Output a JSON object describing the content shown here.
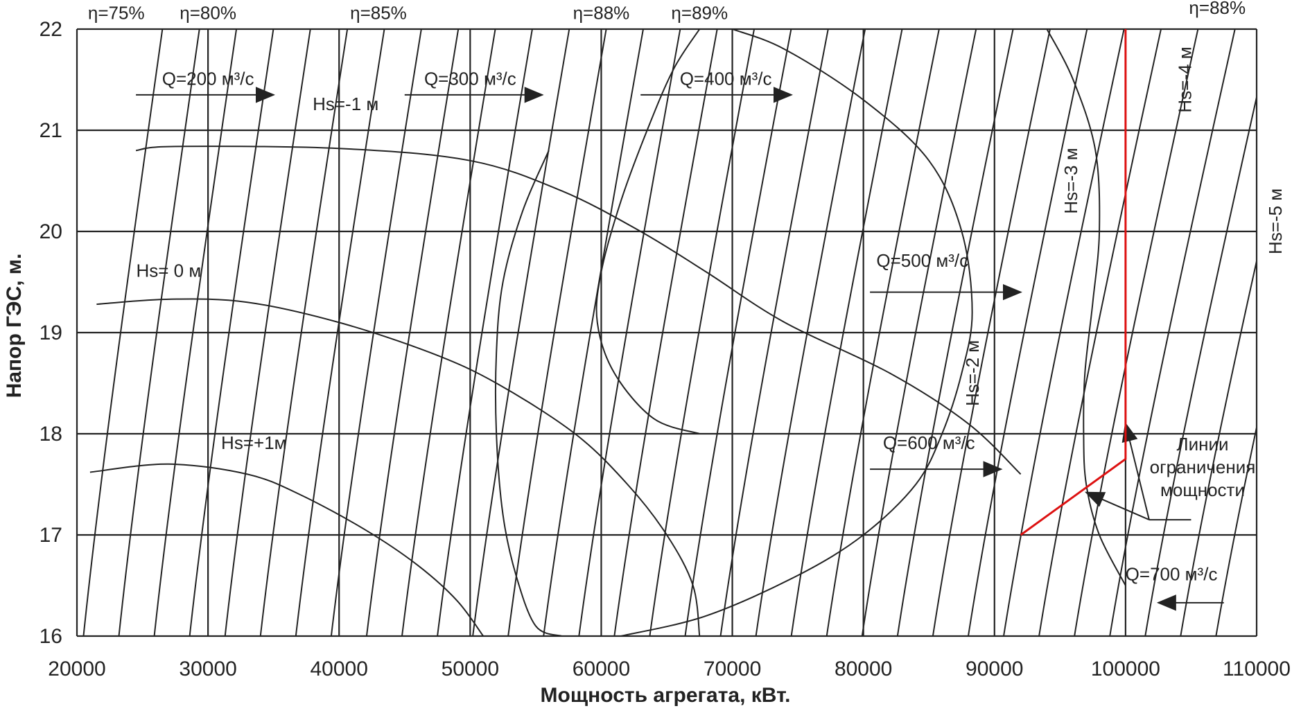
{
  "chart_data": {
    "type": "line",
    "xlabel": "Мощность агрегата, кВт.",
    "ylabel": "Напор ГЭС, м.",
    "xlim": [
      20000,
      110000
    ],
    "ylim": [
      16,
      22
    ],
    "x_ticks": [
      20000,
      30000,
      40000,
      50000,
      60000,
      70000,
      80000,
      90000,
      100000,
      110000
    ],
    "x_tick_labels": [
      "20000",
      "30000",
      "40000",
      "50000",
      "60000",
      "70000",
      "80000",
      "90000",
      "100000",
      "110000"
    ],
    "y_ticks": [
      16,
      17,
      18,
      19,
      20,
      21,
      22
    ],
    "y_tick_labels": [
      "16",
      "17",
      "18",
      "19",
      "20",
      "21",
      "22"
    ],
    "grid": true,
    "efficiency_labels": [
      {
        "text": "η=75%",
        "x": 23000,
        "y": 22.1
      },
      {
        "text": "η=80%",
        "x": 30000,
        "y": 22.1
      },
      {
        "text": "η=85%",
        "x": 43000,
        "y": 22.1
      },
      {
        "text": "η=88%",
        "x": 60000,
        "y": 22.1
      },
      {
        "text": "η=89%",
        "x": 67500,
        "y": 22.1
      },
      {
        "text": "η=88%",
        "x": 107000,
        "y": 22.15
      }
    ],
    "discharge_labels": [
      {
        "text": "Q=200 м³/с",
        "x": 30000,
        "y": 21.45
      },
      {
        "text": "Q=300 м³/с",
        "x": 50000,
        "y": 21.45
      },
      {
        "text": "Q=400 м³/с",
        "x": 69500,
        "y": 21.45
      },
      {
        "text": "Q=500 м³/с",
        "x": 84500,
        "y": 19.65
      },
      {
        "text": "Q=600 м³/с",
        "x": 85000,
        "y": 17.85
      },
      {
        "text": "Q=700 м³/с",
        "x": 103500,
        "y": 16.55
      }
    ],
    "suction_labels": [
      {
        "text": "Hs=-1 м",
        "x": 40500,
        "y": 21.2
      },
      {
        "text": "Hs= 0 м",
        "x": 27000,
        "y": 19.55
      },
      {
        "text": "Hs=+1м",
        "x": 33500,
        "y": 17.85
      }
    ],
    "suction_labels_vertical": [
      {
        "text": "Hs=-2 м",
        "x": 88800,
        "y": 18.6
      },
      {
        "text": "Hs=-3 м",
        "x": 96300,
        "y": 20.5
      },
      {
        "text": "Hs=-4 м",
        "x": 105000,
        "y": 21.5
      },
      {
        "text": "Hs=-5 м",
        "x": 111900,
        "y": 20.1
      }
    ],
    "power_limit_label": [
      "Линии",
      "ограничения",
      "мощности"
    ],
    "power_limit_line": [
      [
        92000,
        17.0
      ],
      [
        100000,
        17.75
      ],
      [
        100000,
        22.0
      ]
    ],
    "hs_curves": [
      {
        "label": "Hs=-1 м",
        "points": [
          [
            24500,
            20.8
          ],
          [
            27500,
            20.84
          ],
          [
            40000,
            20.82
          ],
          [
            50000,
            20.7
          ],
          [
            57000,
            20.4
          ],
          [
            63000,
            20.0
          ],
          [
            68000,
            19.6
          ],
          [
            74000,
            19.1
          ],
          [
            82000,
            18.6
          ],
          [
            88000,
            18.1
          ],
          [
            92000,
            17.6
          ]
        ]
      },
      {
        "label": "Hs= 0 м",
        "points": [
          [
            21500,
            19.28
          ],
          [
            27000,
            19.33
          ],
          [
            33000,
            19.3
          ],
          [
            40000,
            19.1
          ],
          [
            47000,
            18.8
          ],
          [
            52000,
            18.5
          ],
          [
            58000,
            18.0
          ],
          [
            62000,
            17.5
          ],
          [
            65000,
            17.0
          ],
          [
            67000,
            16.5
          ],
          [
            67500,
            16.0
          ]
        ]
      },
      {
        "label": "Hs=+1м",
        "points": [
          [
            21000,
            17.62
          ],
          [
            27000,
            17.7
          ],
          [
            33000,
            17.6
          ],
          [
            37000,
            17.4
          ],
          [
            42000,
            17.05
          ],
          [
            46000,
            16.7
          ],
          [
            49000,
            16.35
          ],
          [
            51000,
            16.0
          ]
        ]
      }
    ],
    "efficiency_curves": [
      {
        "label": "η=89%",
        "points": [
          [
            67500,
            18.0
          ],
          [
            64000,
            18.15
          ],
          [
            61000,
            18.6
          ],
          [
            59700,
            19.1
          ],
          [
            60000,
            19.6
          ],
          [
            61500,
            20.3
          ],
          [
            63500,
            21.0
          ],
          [
            65500,
            21.6
          ],
          [
            67500,
            22.0
          ]
        ]
      },
      {
        "label": "η=88%",
        "points": [
          [
            61500,
            16.0
          ],
          [
            68000,
            16.2
          ],
          [
            75000,
            16.6
          ],
          [
            80000,
            17.0
          ],
          [
            84000,
            17.5
          ],
          [
            86000,
            18.0
          ],
          [
            87500,
            18.6
          ],
          [
            88300,
            19.2
          ],
          [
            87500,
            20.0
          ],
          [
            85000,
            20.7
          ],
          [
            80000,
            21.3
          ],
          [
            74000,
            21.8
          ],
          [
            70000,
            22.0
          ]
        ]
      },
      {
        "label": "η=88% (right)",
        "points": [
          [
            100000,
            16.5
          ],
          [
            98000,
            17.0
          ],
          [
            97000,
            17.5
          ],
          [
            96800,
            18.0
          ],
          [
            96900,
            18.6
          ],
          [
            97500,
            19.3
          ],
          [
            98000,
            20.0
          ],
          [
            97700,
            20.8
          ],
          [
            96000,
            21.5
          ],
          [
            94000,
            22.0
          ]
        ]
      },
      {
        "label": "η=85%",
        "points": [
          [
            57000,
            16.0
          ],
          [
            55000,
            16.1
          ],
          [
            53500,
            16.6
          ],
          [
            52500,
            17.2
          ],
          [
            52000,
            18.0
          ],
          [
            52000,
            18.8
          ],
          [
            52500,
            19.5
          ],
          [
            54000,
            20.2
          ],
          [
            56000,
            20.8
          ]
        ]
      }
    ]
  }
}
